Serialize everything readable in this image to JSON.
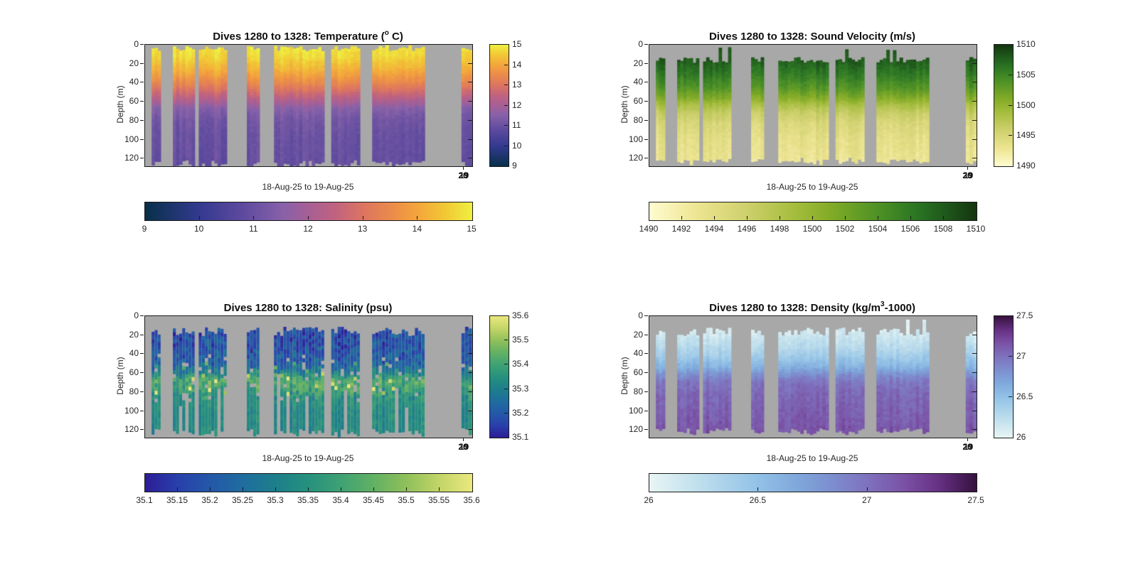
{
  "figure": {
    "dive_start": 1280,
    "dive_end": 1328,
    "background": "#ffffff",
    "plot_background": "#a8a8a8",
    "text_color": "#262626"
  },
  "axes": {
    "xlabel": "18-Aug-25 to 19-Aug-25",
    "ylabel": "Depth (m)",
    "depth_ticks": [
      0,
      20,
      40,
      60,
      80,
      100,
      120
    ],
    "depth_max_m": 128,
    "x_end_tick_labels": [
      "20",
      "19"
    ]
  },
  "dive_groups": [
    {
      "start": 0.02,
      "end": 0.048
    },
    {
      "start": 0.085,
      "end": 0.152
    },
    {
      "start": 0.164,
      "end": 0.25
    },
    {
      "start": 0.311,
      "end": 0.35
    },
    {
      "start": 0.394,
      "end": 0.548
    },
    {
      "start": 0.569,
      "end": 0.657
    },
    {
      "start": 0.694,
      "end": 0.855
    },
    {
      "start": 0.967,
      "end": 1.0
    }
  ],
  "chart_data": [
    {
      "type": "heatmap",
      "variable": "temperature",
      "title_parts": {
        "pre": "Dives 1280 to 1328: Temperature (",
        "sup": "o",
        "post": " C)"
      },
      "value_range": [
        9,
        15
      ],
      "vbar_ticks": [
        "9",
        "10",
        "11",
        "12",
        "13",
        "14",
        "15"
      ],
      "hbar_ticks": [
        "9",
        "10",
        "11",
        "12",
        "13",
        "14",
        "15"
      ],
      "colormap": [
        [
          0,
          "#07304a"
        ],
        [
          0.17,
          "#343a90"
        ],
        [
          0.3,
          "#5e4a9e"
        ],
        [
          0.42,
          "#8761a9"
        ],
        [
          0.5,
          "#a75f95"
        ],
        [
          0.58,
          "#c06280"
        ],
        [
          0.67,
          "#dd7560"
        ],
        [
          0.75,
          "#ea8a4b"
        ],
        [
          0.83,
          "#f4a43c"
        ],
        [
          0.92,
          "#f2c935"
        ],
        [
          1,
          "#eff041"
        ]
      ],
      "profile": [
        [
          0,
          14.9
        ],
        [
          12,
          14.7
        ],
        [
          25,
          14.2
        ],
        [
          38,
          13.5
        ],
        [
          50,
          12.7
        ],
        [
          58,
          12.1
        ],
        [
          66,
          11.5
        ],
        [
          78,
          11.15
        ],
        [
          95,
          11.0
        ],
        [
          128,
          10.9
        ]
      ],
      "render": {
        "seed": 11,
        "cell_m": 3,
        "top_base": 0.5,
        "top_jitter": 6.5,
        "spike_prob": 0,
        "bottom_base": 120,
        "bottom_jitter": 8,
        "noise": 0.1,
        "col_noise": 0.18,
        "hole_prob": 0,
        "short_col_prob": 0
      }
    },
    {
      "type": "heatmap",
      "variable": "sound_velocity",
      "title_parts": {
        "pre": "Dives 1280 to 1328: Sound Velocity (m/s)",
        "sup": "",
        "post": ""
      },
      "value_range": [
        1490,
        1510
      ],
      "vbar_ticks": [
        "1490",
        "1495",
        "1500",
        "1505",
        "1510"
      ],
      "hbar_ticks": [
        "1490",
        "1492",
        "1494",
        "1496",
        "1498",
        "1500",
        "1502",
        "1504",
        "1506",
        "1508",
        "1510"
      ],
      "colormap": [
        [
          0,
          "#fffcd0"
        ],
        [
          0.15,
          "#ece490"
        ],
        [
          0.3,
          "#cdd06b"
        ],
        [
          0.45,
          "#a3bc3b"
        ],
        [
          0.55,
          "#83ac27"
        ],
        [
          0.7,
          "#4d9126"
        ],
        [
          0.82,
          "#2a7423"
        ],
        [
          0.92,
          "#1d5319"
        ],
        [
          1,
          "#14350f"
        ]
      ],
      "profile": [
        [
          0,
          1508.5
        ],
        [
          15,
          1508
        ],
        [
          30,
          1506
        ],
        [
          45,
          1503.5
        ],
        [
          55,
          1501
        ],
        [
          62,
          1498.5
        ],
        [
          70,
          1496.5
        ],
        [
          82,
          1494.8
        ],
        [
          100,
          1493.6
        ],
        [
          128,
          1492.8
        ]
      ],
      "render": {
        "seed": 22,
        "cell_m": 2.5,
        "top_base": 13,
        "top_jitter": 6,
        "spike_prob": 0.1,
        "bottom_base": 118,
        "bottom_jitter": 7,
        "noise": 0.45,
        "col_noise": 0.7,
        "hole_prob": 0,
        "short_col_prob": 0
      }
    },
    {
      "type": "heatmap",
      "variable": "salinity",
      "title_parts": {
        "pre": "Dives 1280 to 1328: Salinity (psu)",
        "sup": "",
        "post": ""
      },
      "value_range": [
        35.1,
        35.6
      ],
      "vbar_ticks": [
        "35.1",
        "35.2",
        "35.3",
        "35.4",
        "35.5",
        "35.6"
      ],
      "hbar_ticks": [
        "35.1",
        "35.15",
        "35.2",
        "35.25",
        "35.3",
        "35.35",
        "35.4",
        "35.45",
        "35.5",
        "35.55",
        "35.6"
      ],
      "colormap": [
        [
          0,
          "#2c1d96"
        ],
        [
          0.1,
          "#2940ab"
        ],
        [
          0.2,
          "#2458a8"
        ],
        [
          0.3,
          "#1f6d9f"
        ],
        [
          0.4,
          "#1d7f8a"
        ],
        [
          0.5,
          "#26917e"
        ],
        [
          0.6,
          "#3fa273"
        ],
        [
          0.7,
          "#62b164"
        ],
        [
          0.8,
          "#90c05a"
        ],
        [
          0.9,
          "#c3d568"
        ],
        [
          1,
          "#eae87d"
        ]
      ],
      "profile": [
        [
          0,
          35.17
        ],
        [
          30,
          35.18
        ],
        [
          48,
          35.22
        ],
        [
          58,
          35.32
        ],
        [
          66,
          35.42
        ],
        [
          74,
          35.4
        ],
        [
          85,
          35.35
        ],
        [
          100,
          35.33
        ],
        [
          128,
          35.33
        ]
      ],
      "render": {
        "seed": 33,
        "cell_m": 4,
        "top_base": 11,
        "top_jitter": 10,
        "spike_prob": 0,
        "bottom_base": 117,
        "bottom_jitter": 7,
        "noise": 0.06,
        "col_noise": 0.03,
        "hole_prob": 0.09,
        "hole_range": [
          38,
          88
        ],
        "short_col_prob": 0.1,
        "noise_split": 85,
        "noise_deep_factor": 0.4,
        "spot_prob": 0.05,
        "spot_range": [
          46,
          80
        ],
        "spot_amount": 0.17,
        "strip_shrink": 0.7
      }
    },
    {
      "type": "heatmap",
      "variable": "density",
      "title_parts": {
        "pre": "Dives 1280 to 1328: Density (kg/m",
        "sup": "3",
        "post": "-1000)"
      },
      "value_range": [
        26,
        27.5
      ],
      "vbar_ticks": [
        "26",
        "26.5",
        "27",
        "27.5"
      ],
      "hbar_ticks": [
        "26",
        "26.5",
        "27",
        "27.5"
      ],
      "colormap": [
        [
          0,
          "#e8f5f4"
        ],
        [
          0.15,
          "#bfdfed"
        ],
        [
          0.33,
          "#92c2e7"
        ],
        [
          0.45,
          "#7fa8dc"
        ],
        [
          0.55,
          "#7d90d0"
        ],
        [
          0.67,
          "#7e70bd"
        ],
        [
          0.78,
          "#7a51a5"
        ],
        [
          0.88,
          "#683285"
        ],
        [
          1,
          "#36113f"
        ]
      ],
      "profile": [
        [
          0,
          26.06
        ],
        [
          15,
          26.1
        ],
        [
          30,
          26.25
        ],
        [
          42,
          26.42
        ],
        [
          52,
          26.6
        ],
        [
          60,
          26.82
        ],
        [
          68,
          26.98
        ],
        [
          80,
          27.05
        ],
        [
          100,
          27.1
        ],
        [
          128,
          27.17
        ]
      ],
      "render": {
        "seed": 44,
        "cell_m": 3,
        "top_base": 12,
        "top_jitter": 9,
        "spike_prob": 0.04,
        "bottom_base": 117,
        "bottom_jitter": 6,
        "noise": 0.05,
        "col_noise": 0.05,
        "hole_prob": 0,
        "short_col_prob": 0
      }
    }
  ]
}
